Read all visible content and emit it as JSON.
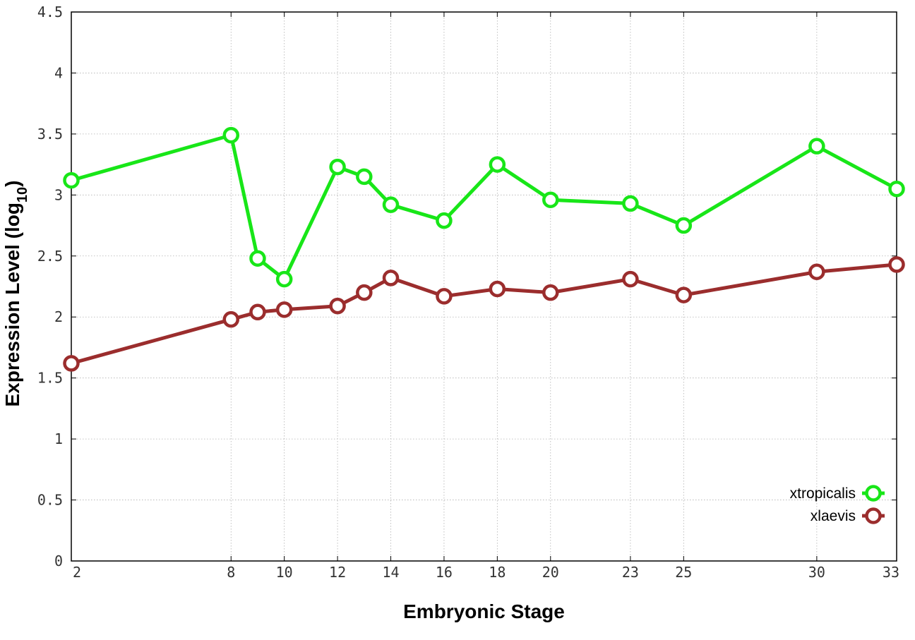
{
  "chart_data": {
    "type": "line",
    "xlabel": "Embryonic Stage",
    "ylabel_main": "Expression Level (log",
    "ylabel_sub": "10",
    "ylabel_close": ")",
    "xlim": [
      2,
      33
    ],
    "ylim": [
      0,
      4.5
    ],
    "x_ticks": [
      2,
      8,
      10,
      12,
      14,
      16,
      18,
      20,
      23,
      25,
      30,
      33
    ],
    "x_tick_labels": [
      "2",
      "8",
      "10",
      "12",
      "14",
      "16",
      "18",
      "20",
      "23",
      "25",
      "30",
      "33"
    ],
    "y_ticks": [
      0,
      0.5,
      1,
      1.5,
      2,
      2.5,
      3,
      3.5,
      4,
      4.5
    ],
    "y_tick_labels": [
      "0",
      "0.5",
      "1",
      "1.5",
      "2",
      "2.5",
      "3",
      "3.5",
      "4",
      "4.5"
    ],
    "grid": true,
    "legend_position": "bottom-right",
    "x": [
      2,
      8,
      9,
      10,
      12,
      13,
      14,
      16,
      18,
      20,
      23,
      25,
      30,
      33
    ],
    "series": [
      {
        "name": "xtropicalis",
        "color": "#18e618",
        "values": [
          3.12,
          3.49,
          2.48,
          2.31,
          3.23,
          3.15,
          2.92,
          2.79,
          3.25,
          2.96,
          2.93,
          2.75,
          3.4,
          3.05
        ]
      },
      {
        "name": "xlaevis",
        "color": "#9b2d2d",
        "values": [
          1.62,
          1.98,
          2.04,
          2.06,
          2.09,
          2.2,
          2.32,
          2.17,
          2.23,
          2.2,
          2.31,
          2.18,
          2.37,
          2.43
        ]
      }
    ]
  }
}
